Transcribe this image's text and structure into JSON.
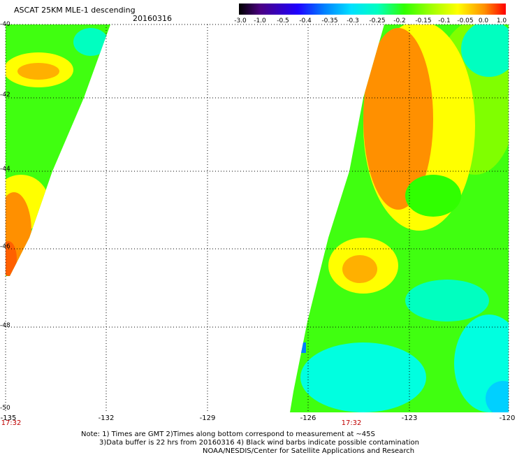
{
  "title": "ASCAT 25KM MLE-1 descending",
  "date": "20160316",
  "colorbar": {
    "labels": [
      "-3.0",
      "-1.0",
      "-0.5",
      "-0.4",
      "-0.35",
      "-0.3",
      "-0.25",
      "-0.2",
      "-0.15",
      "-0.1",
      "-0.05",
      "0.0",
      "1.0"
    ],
    "colors": [
      "#000000",
      "#4b0082",
      "#1e00ff",
      "#0080ff",
      "#00d0ff",
      "#00ffe0",
      "#00ff80",
      "#30ff00",
      "#a0ff00",
      "#ffff00",
      "#ffb000",
      "#ff6000",
      "#ff0000"
    ]
  },
  "axes": {
    "lat_labels": [
      "-40",
      "-42",
      "-44",
      "-46",
      "-48",
      "-50"
    ],
    "lon_labels": [
      "-135",
      "-132",
      "-129",
      "-126",
      "-123",
      "-120"
    ],
    "lat_range": [
      -50,
      -40
    ],
    "lon_range": [
      -135,
      -120
    ],
    "grid": "dotted"
  },
  "pass_times": [
    "17:32",
    "17:32"
  ],
  "notes": [
    "Note: 1) Times are GMT 2)Times along bottom correspond to measurement at ~45S",
    "3)Data buffer is 22 hrs from 20160316 4) Black wind barbs indicate possible contamination",
    "NOAA/NESDIS/Center for Satellite Applications and Research"
  ]
}
